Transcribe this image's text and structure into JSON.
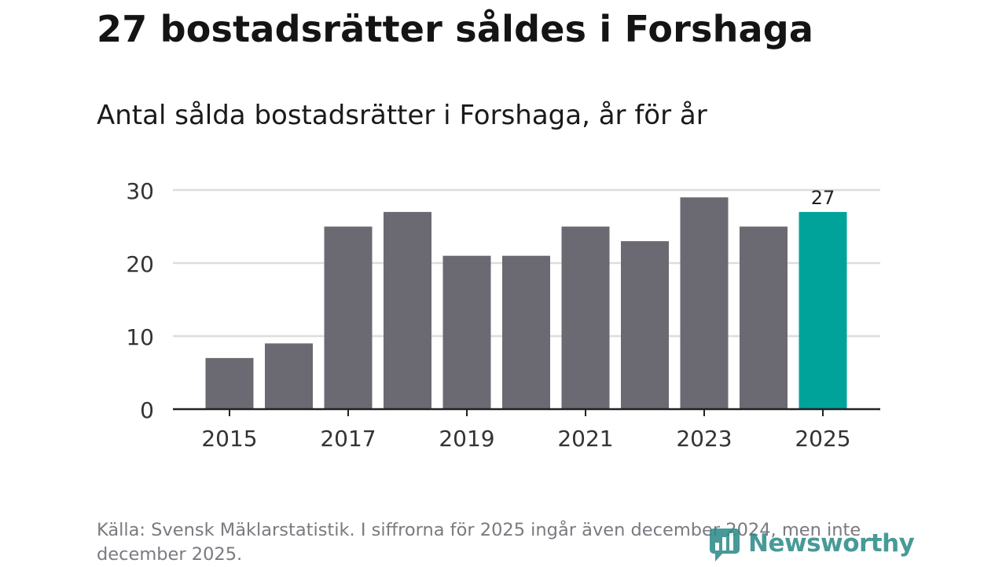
{
  "header": {
    "title": "27 bostadsrätter såldes i Forshaga",
    "subtitle": "Antal sålda bostadsrätter i Forshaga, år för år"
  },
  "footer": {
    "source": "Källa: Svensk Mäklarstatistik. I siffrorna för 2025 ingår även december 2024, men inte december 2025.",
    "brand": "Newsworthy"
  },
  "colors": {
    "bar": "#6b6a72",
    "highlight": "#00a39a",
    "grid": "#dddddd",
    "axis": "#222222",
    "tick_text": "#333333",
    "brand": "#2a8a87"
  },
  "chart_data": {
    "type": "bar",
    "title": "27 bostadsrätter såldes i Forshaga",
    "subtitle": "Antal sålda bostadsrätter i Forshaga, år för år",
    "xlabel": "",
    "ylabel": "",
    "categories": [
      "2015",
      "2016",
      "2017",
      "2018",
      "2019",
      "2020",
      "2021",
      "2022",
      "2023",
      "2024",
      "2025"
    ],
    "values": [
      7,
      9,
      25,
      27,
      21,
      21,
      25,
      23,
      29,
      25,
      27
    ],
    "highlight_index": 10,
    "data_labels": [
      {
        "index": 10,
        "text": "27"
      }
    ],
    "ylim": [
      0,
      30
    ],
    "yticks": [
      0,
      10,
      20,
      30
    ],
    "xtick_labels": [
      "2015",
      "2017",
      "2019",
      "2021",
      "2023",
      "2025"
    ],
    "grid": "horizontal"
  }
}
